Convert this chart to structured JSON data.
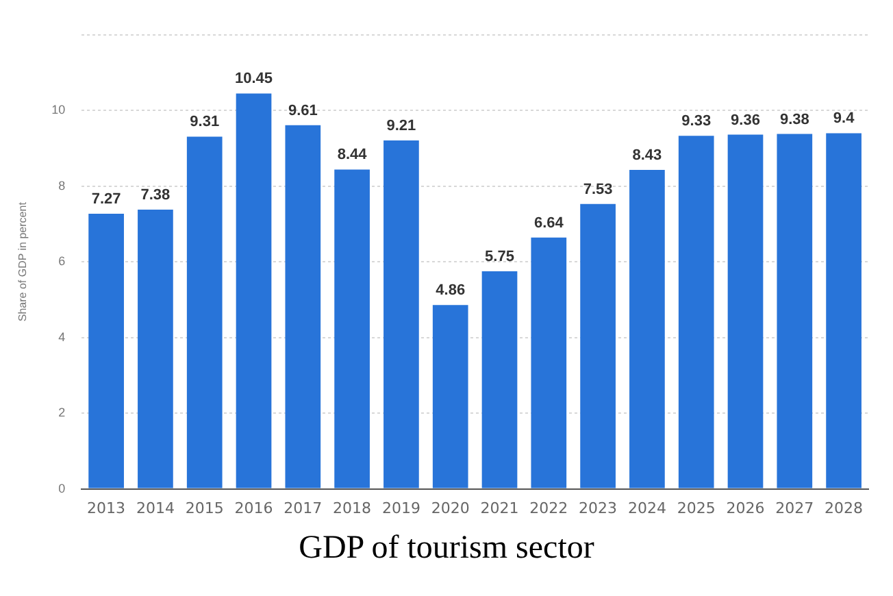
{
  "chart_data": {
    "type": "bar",
    "title": "GDP of tourism sector",
    "ylabel": "Share of GDP in percent",
    "categories": [
      "2013",
      "2014",
      "2015",
      "2016",
      "2017",
      "2018",
      "2019",
      "2020",
      "2021",
      "2022",
      "2023",
      "2024",
      "2025",
      "2026",
      "2027",
      "2028"
    ],
    "values": [
      7.27,
      7.38,
      9.31,
      10.45,
      9.61,
      8.44,
      9.21,
      4.86,
      5.75,
      6.64,
      7.53,
      8.43,
      9.33,
      9.36,
      9.38,
      9.4
    ],
    "color": "#2874d9",
    "ylim": [
      0,
      12
    ],
    "yticks": [
      0,
      2,
      4,
      6,
      8,
      10,
      {
        "value": 12,
        "label": null
      }
    ],
    "grid": "y",
    "data_labels": true,
    "legend": false
  }
}
